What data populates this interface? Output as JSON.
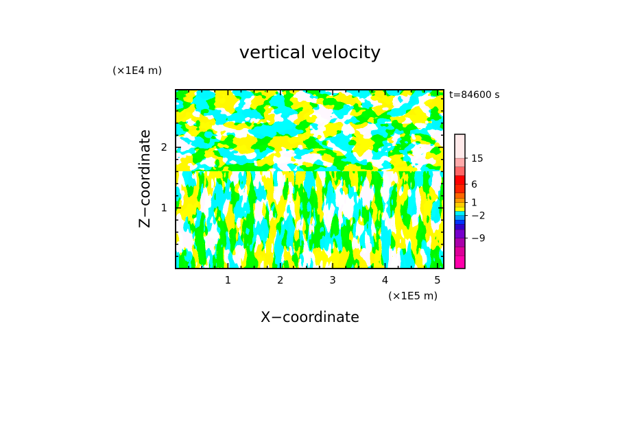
{
  "chart_data": {
    "type": "heatmap",
    "title": "vertical velocity",
    "xlabel": "X−coordinate",
    "ylabel": "Z−coordinate",
    "x_unit": "(×1E5 m)",
    "y_unit": "(×1E4 m)",
    "time_label": "t=84600 s",
    "xlim": [
      0,
      5.12
    ],
    "ylim": [
      0,
      2.95
    ],
    "x_ticks": [
      {
        "value": 1,
        "label": "1"
      },
      {
        "value": 2,
        "label": "2"
      },
      {
        "value": 3,
        "label": "3"
      },
      {
        "value": 4,
        "label": "4"
      },
      {
        "value": 5,
        "label": "5"
      }
    ],
    "y_ticks": [
      {
        "value": 1,
        "label": "1"
      },
      {
        "value": 2,
        "label": "2"
      }
    ],
    "field": {
      "dominant_levels": [
        "yellow",
        "cyan"
      ],
      "colors": {
        "positive": "#ffff00",
        "negative": "#00f0ff"
      },
      "pattern": "alternating updraft/downdraft streaks, tilted in upper layer"
    },
    "colorbar": {
      "levels": [
        {
          "color": "#ff00aa"
        },
        {
          "color": "#dd0099"
        },
        {
          "color": "#aa00aa"
        },
        {
          "color": "#7700cc"
        },
        {
          "color": "#3300cc"
        },
        {
          "color": "#0033ff"
        },
        {
          "color": "#00a0ff"
        },
        {
          "color": "#00f0ff"
        },
        {
          "color": "#ffff00"
        },
        {
          "color": "#ffcc00"
        },
        {
          "color": "#ff9900"
        },
        {
          "color": "#ff6600"
        },
        {
          "color": "#ff2200"
        },
        {
          "color": "#ff0000"
        },
        {
          "color": "#ff6666"
        },
        {
          "color": "#ffaaaa"
        },
        {
          "color": "#ffeaea"
        }
      ],
      "tick_labels": [
        {
          "value": 15,
          "label": "15"
        },
        {
          "value": 6,
          "label": "6"
        },
        {
          "value": 1,
          "label": "1"
        },
        {
          "value": -2,
          "label": "−2"
        },
        {
          "value": -9,
          "label": "−9"
        }
      ]
    }
  }
}
